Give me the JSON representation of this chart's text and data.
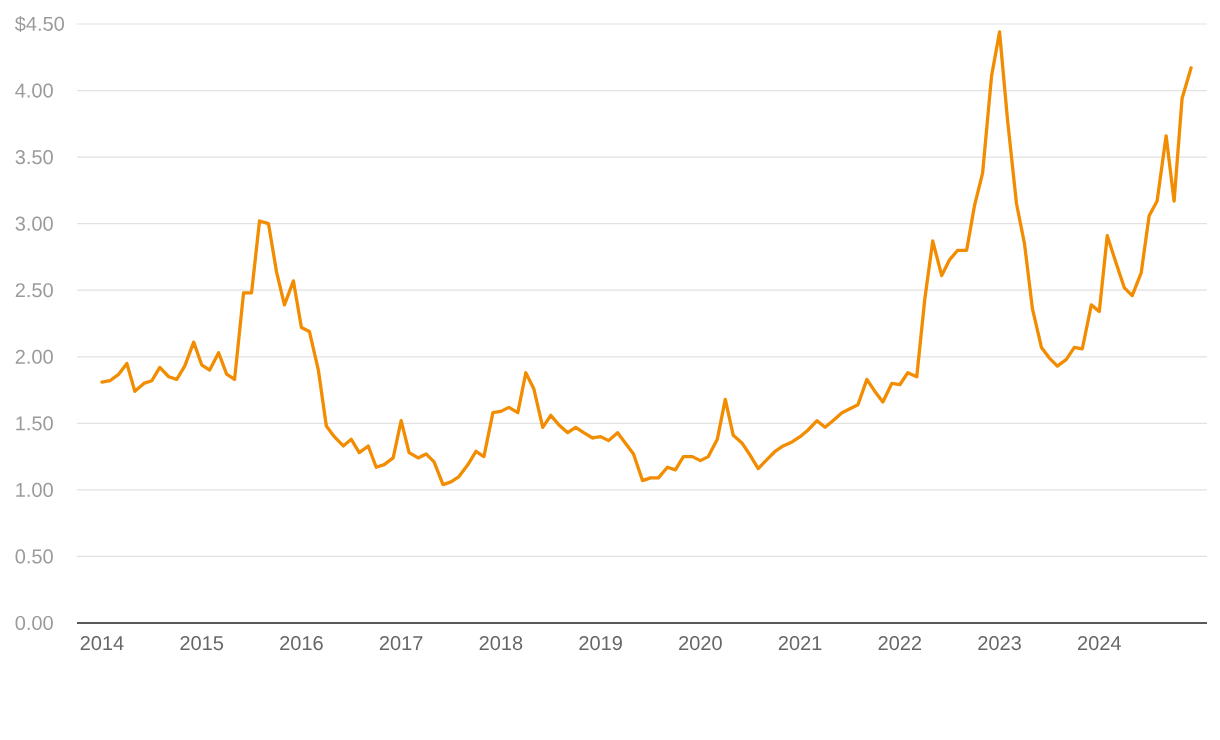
{
  "chart_data": {
    "type": "line",
    "x": [
      "2014-01",
      "2014-02",
      "2014-03",
      "2014-04",
      "2014-05",
      "2014-06",
      "2014-07",
      "2014-08",
      "2014-09",
      "2014-10",
      "2014-11",
      "2014-12",
      "2015-01",
      "2015-02",
      "2015-03",
      "2015-04",
      "2015-05",
      "2015-06",
      "2015-07",
      "2015-08",
      "2015-09",
      "2015-10",
      "2015-11",
      "2015-12",
      "2016-01",
      "2016-02",
      "2016-03",
      "2016-04",
      "2016-05",
      "2016-06",
      "2016-07",
      "2016-08",
      "2016-09",
      "2016-10",
      "2016-11",
      "2016-12",
      "2017-01",
      "2017-02",
      "2017-03",
      "2017-04",
      "2017-05",
      "2017-06",
      "2017-07",
      "2017-08",
      "2017-09",
      "2017-10",
      "2017-11",
      "2017-12",
      "2018-01",
      "2018-02",
      "2018-03",
      "2018-04",
      "2018-05",
      "2018-06",
      "2018-07",
      "2018-08",
      "2018-09",
      "2018-10",
      "2018-11",
      "2018-12",
      "2019-01",
      "2019-02",
      "2019-03",
      "2019-04",
      "2019-05",
      "2019-06",
      "2019-07",
      "2019-08",
      "2019-09",
      "2019-10",
      "2019-11",
      "2019-12",
      "2020-01",
      "2020-02",
      "2020-03",
      "2020-04",
      "2020-05",
      "2020-06",
      "2020-07",
      "2020-08",
      "2020-09",
      "2020-10",
      "2020-11",
      "2020-12",
      "2021-01",
      "2021-02",
      "2021-03",
      "2021-04",
      "2021-05",
      "2021-06",
      "2021-07",
      "2021-08",
      "2021-09",
      "2021-10",
      "2021-11",
      "2021-12",
      "2022-01",
      "2022-02",
      "2022-03",
      "2022-04",
      "2022-05",
      "2022-06",
      "2022-07",
      "2022-08",
      "2022-09",
      "2022-10",
      "2022-11",
      "2022-12",
      "2023-01",
      "2023-02",
      "2023-03",
      "2023-04",
      "2023-05",
      "2023-06",
      "2023-07",
      "2023-08",
      "2023-09",
      "2023-10",
      "2023-11",
      "2023-12",
      "2024-01",
      "2024-02",
      "2024-03",
      "2024-04",
      "2024-05",
      "2024-06",
      "2024-07",
      "2024-08",
      "2024-09",
      "2024-10",
      "2024-11",
      "2024-12"
    ],
    "values": [
      1.81,
      1.82,
      1.87,
      1.95,
      1.74,
      1.8,
      1.82,
      1.92,
      1.85,
      1.83,
      1.93,
      2.11,
      1.94,
      1.9,
      2.03,
      1.87,
      1.83,
      2.48,
      2.48,
      3.02,
      3.0,
      2.64,
      2.39,
      2.57,
      2.22,
      2.19,
      1.9,
      1.48,
      1.4,
      1.33,
      1.38,
      1.28,
      1.33,
      1.17,
      1.19,
      1.24,
      1.52,
      1.28,
      1.24,
      1.27,
      1.21,
      1.04,
      1.06,
      1.1,
      1.19,
      1.29,
      1.25,
      1.58,
      1.59,
      1.62,
      1.58,
      1.88,
      1.76,
      1.47,
      1.56,
      1.49,
      1.43,
      1.47,
      1.43,
      1.39,
      1.4,
      1.37,
      1.43,
      1.35,
      1.27,
      1.07,
      1.09,
      1.09,
      1.17,
      1.15,
      1.25,
      1.25,
      1.22,
      1.25,
      1.38,
      1.68,
      1.41,
      1.35,
      1.26,
      1.16,
      1.23,
      1.29,
      1.33,
      1.36,
      1.4,
      1.45,
      1.52,
      1.47,
      1.52,
      1.58,
      1.61,
      1.64,
      1.83,
      1.74,
      1.66,
      1.8,
      1.79,
      1.88,
      1.85,
      2.43,
      2.87,
      2.61,
      2.73,
      2.8,
      2.8,
      3.14,
      3.38,
      4.11,
      4.44,
      3.78,
      3.15,
      2.85,
      2.36,
      2.07,
      1.99,
      1.93,
      1.98,
      2.07,
      2.06,
      2.39,
      2.34,
      2.91,
      2.7,
      2.52,
      2.46,
      2.63,
      3.06,
      3.17,
      3.66,
      3.17,
      3.94,
      4.17
    ],
    "color": "#f28c00",
    "xlim": [
      "2013-10",
      "2025-02"
    ],
    "xticks": [
      "2014",
      "2015",
      "2016",
      "2017",
      "2018",
      "2019",
      "2020",
      "2021",
      "2022",
      "2023",
      "2024"
    ],
    "ylim": [
      0,
      4.5
    ],
    "yticks": [
      {
        "value": 0,
        "label": "0.00"
      },
      {
        "value": 0.5,
        "label": "0.50"
      },
      {
        "value": 1,
        "label": "1.00"
      },
      {
        "value": 1.5,
        "label": "1.50"
      },
      {
        "value": 2,
        "label": "2.00"
      },
      {
        "value": 2.5,
        "label": "2.50"
      },
      {
        "value": 3,
        "label": "3.00"
      },
      {
        "value": 3.5,
        "label": "3.50"
      },
      {
        "value": 4,
        "label": "4.00"
      },
      {
        "value": 4.5,
        "label": "$4.50"
      }
    ],
    "grid": "y"
  }
}
